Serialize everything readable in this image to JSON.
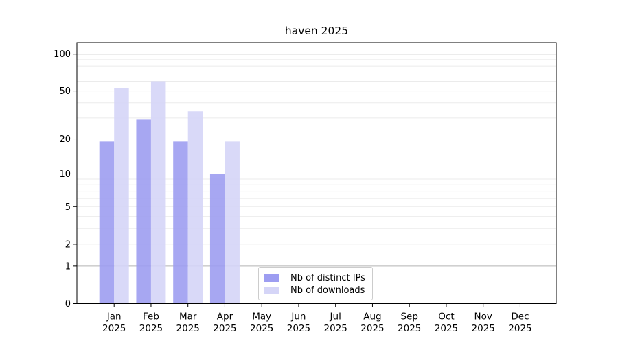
{
  "title": "haven 2025",
  "chart_data": {
    "type": "bar",
    "title": "haven 2025",
    "categories": [
      "Jan 2025",
      "Feb 2025",
      "Mar 2025",
      "Apr 2025",
      "May 2025",
      "Jun 2025",
      "Jul 2025",
      "Aug 2025",
      "Sep 2025",
      "Oct 2025",
      "Nov 2025",
      "Dec 2025"
    ],
    "month_line1": [
      "Jan",
      "Feb",
      "Mar",
      "Apr",
      "May",
      "Jun",
      "Jul",
      "Aug",
      "Sep",
      "Oct",
      "Nov",
      "Dec"
    ],
    "month_line2": "2025",
    "series": [
      {
        "name": "Nb of distinct IPs",
        "color": "#9d9df1",
        "values": [
          19,
          29,
          19,
          10,
          null,
          null,
          null,
          null,
          null,
          null,
          null,
          null
        ]
      },
      {
        "name": "Nb of downloads",
        "color": "#d5d5f7",
        "values": [
          53,
          60,
          34,
          19,
          null,
          null,
          null,
          null,
          null,
          null,
          null,
          null
        ]
      }
    ],
    "xlabel": "",
    "ylabel": "",
    "yscale": "log10(1+x)",
    "ylim": [
      0,
      124
    ],
    "y_ticks": [
      0,
      1,
      2,
      5,
      10,
      20,
      50,
      100
    ],
    "y_major_gridlines": [
      1,
      10,
      100
    ],
    "y_minor_gridlines": [
      2,
      3,
      4,
      5,
      6,
      7,
      8,
      9,
      20,
      30,
      40,
      50,
      60,
      70,
      80,
      90
    ],
    "grid": true,
    "legend_position": "inside lower center"
  },
  "legend": {
    "items": [
      {
        "label": "Nb of distinct IPs",
        "color": "#9d9df1"
      },
      {
        "label": "Nb of downloads",
        "color": "#d5d5f7"
      }
    ]
  },
  "colors": {
    "background": "#ffffff",
    "axis": "#000000",
    "grid_major": "#b3b3b3",
    "grid_minor": "#ebebeb",
    "legend_border": "#cccccc",
    "tick_label": "#000000"
  }
}
